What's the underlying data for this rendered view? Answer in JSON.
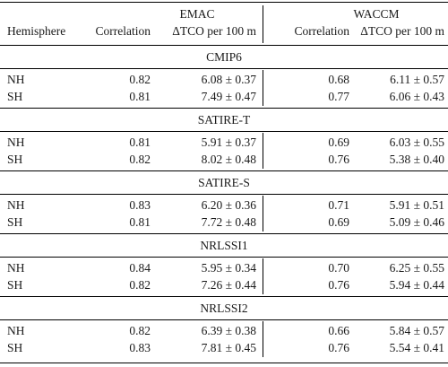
{
  "header": {
    "group_emac": "EMAC",
    "group_waccm": "WACCM",
    "col_hemisphere": "Hemisphere",
    "col_corr_emac": "Correlation",
    "col_dtco_emac": "ΔTCO per 100 m",
    "col_corr_waccm": "Correlation",
    "col_dtco_waccm": "ΔTCO per 100 m"
  },
  "sections": [
    {
      "title": "CMIP6",
      "rows": [
        {
          "hemi": "NH",
          "emac_corr": "0.82",
          "emac_dtco": "6.08 ± 0.37",
          "waccm_corr": "0.68",
          "waccm_dtco": "6.11 ± 0.57"
        },
        {
          "hemi": "SH",
          "emac_corr": "0.81",
          "emac_dtco": "7.49 ± 0.47",
          "waccm_corr": "0.77",
          "waccm_dtco": "6.06 ± 0.43"
        }
      ]
    },
    {
      "title": "SATIRE-T",
      "rows": [
        {
          "hemi": "NH",
          "emac_corr": "0.81",
          "emac_dtco": "5.91 ± 0.37",
          "waccm_corr": "0.69",
          "waccm_dtco": "6.03 ± 0.55"
        },
        {
          "hemi": "SH",
          "emac_corr": "0.82",
          "emac_dtco": "8.02 ± 0.48",
          "waccm_corr": "0.76",
          "waccm_dtco": "5.38 ± 0.40"
        }
      ]
    },
    {
      "title": "SATIRE-S",
      "rows": [
        {
          "hemi": "NH",
          "emac_corr": "0.83",
          "emac_dtco": "6.20 ± 0.36",
          "waccm_corr": "0.71",
          "waccm_dtco": "5.91 ± 0.51"
        },
        {
          "hemi": "SH",
          "emac_corr": "0.81",
          "emac_dtco": "7.72 ± 0.48",
          "waccm_corr": "0.69",
          "waccm_dtco": "5.09 ± 0.46"
        }
      ]
    },
    {
      "title": "NRLSSI1",
      "rows": [
        {
          "hemi": "NH",
          "emac_corr": "0.84",
          "emac_dtco": "5.95 ± 0.34",
          "waccm_corr": "0.70",
          "waccm_dtco": "6.25 ± 0.55"
        },
        {
          "hemi": "SH",
          "emac_corr": "0.82",
          "emac_dtco": "7.26 ± 0.44",
          "waccm_corr": "0.76",
          "waccm_dtco": "5.94 ± 0.44"
        }
      ]
    },
    {
      "title": "NRLSSI2",
      "rows": [
        {
          "hemi": "NH",
          "emac_corr": "0.82",
          "emac_dtco": "6.39 ± 0.38",
          "waccm_corr": "0.66",
          "waccm_dtco": "5.84 ± 0.57"
        },
        {
          "hemi": "SH",
          "emac_corr": "0.83",
          "emac_dtco": "7.81 ± 0.45",
          "waccm_corr": "0.76",
          "waccm_dtco": "5.54 ± 0.41"
        }
      ]
    }
  ]
}
